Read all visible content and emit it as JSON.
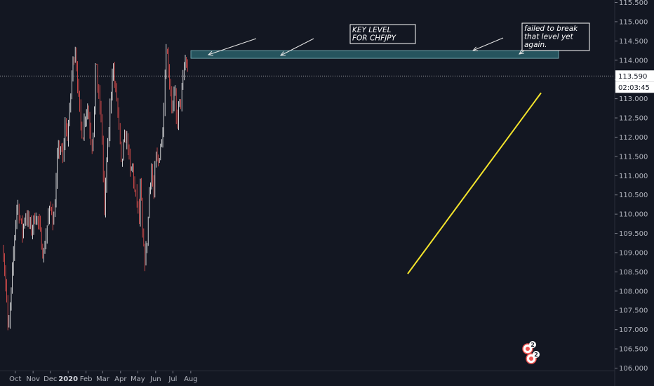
{
  "chart_data": {
    "type": "candlestick",
    "symbol": "CHFJPY",
    "ylim": [
      106.0,
      115.5
    ],
    "y_ticks": [
      "106.000",
      "106.500",
      "107.000",
      "107.500",
      "108.000",
      "108.500",
      "109.000",
      "109.500",
      "110.000",
      "110.500",
      "111.000",
      "111.500",
      "112.000",
      "112.500",
      "113.000",
      "113.500",
      "114.000",
      "114.500",
      "115.000",
      "115.500"
    ],
    "x_ticks": [
      {
        "label": "Oct",
        "bold": false
      },
      {
        "label": "Nov",
        "bold": false
      },
      {
        "label": "Dec",
        "bold": false
      },
      {
        "label": "2020",
        "bold": true
      },
      {
        "label": "Feb",
        "bold": false
      },
      {
        "label": "Mar",
        "bold": false
      },
      {
        "label": "Apr",
        "bold": false
      },
      {
        "label": "May",
        "bold": false
      },
      {
        "label": "Jun",
        "bold": false
      },
      {
        "label": "Jul",
        "bold": false
      },
      {
        "label": "Aug",
        "bold": false
      }
    ],
    "price_path": [
      [
        "2019-09-25",
        109.0
      ],
      [
        "2019-09-28",
        108.4
      ],
      [
        "2019-10-02",
        107.6
      ],
      [
        "2019-10-03",
        106.8
      ],
      [
        "2019-10-08",
        107.8
      ],
      [
        "2019-10-12",
        108.8
      ],
      [
        "2019-10-16",
        109.8
      ],
      [
        "2019-10-19",
        110.3
      ],
      [
        "2019-10-24",
        109.9
      ],
      [
        "2019-10-28",
        109.5
      ],
      [
        "2019-11-02",
        110.0
      ],
      [
        "2019-11-08",
        109.8
      ],
      [
        "2019-11-13",
        109.6
      ],
      [
        "2019-11-20",
        110.0
      ],
      [
        "2019-11-26",
        109.7
      ],
      [
        "2019-12-01",
        109.2
      ],
      [
        "2019-12-04",
        108.9
      ],
      [
        "2019-12-09",
        109.6
      ],
      [
        "2019-12-13",
        110.0
      ],
      [
        "2019-12-18",
        110.2
      ],
      [
        "2019-12-21",
        109.7
      ],
      [
        "2019-12-25",
        110.6
      ],
      [
        "2019-12-28",
        111.5
      ],
      [
        "2020-01-02",
        111.8
      ],
      [
        "2020-01-07",
        111.3
      ],
      [
        "2020-01-10",
        112.4
      ],
      [
        "2020-01-14",
        112.0
      ],
      [
        "2020-01-18",
        112.6
      ],
      [
        "2020-01-22",
        113.6
      ],
      [
        "2020-01-25",
        114.1
      ],
      [
        "2020-01-28",
        114.3
      ],
      [
        "2020-02-02",
        113.2
      ],
      [
        "2020-02-06",
        112.4
      ],
      [
        "2020-02-10",
        112.0
      ],
      [
        "2020-02-14",
        112.6
      ],
      [
        "2020-02-18",
        112.8
      ],
      [
        "2020-02-22",
        112.3
      ],
      [
        "2020-02-26",
        111.8
      ],
      [
        "2020-03-01",
        112.6
      ],
      [
        "2020-03-04",
        114.3
      ],
      [
        "2020-03-07",
        113.2
      ],
      [
        "2020-03-11",
        112.8
      ],
      [
        "2020-03-15",
        111.9
      ],
      [
        "2020-03-17",
        110.8
      ],
      [
        "2020-03-19",
        109.9
      ],
      [
        "2020-03-22",
        111.3
      ],
      [
        "2020-03-26",
        112.0
      ],
      [
        "2020-03-29",
        112.9
      ],
      [
        "2020-04-02",
        113.9
      ],
      [
        "2020-04-06",
        113.3
      ],
      [
        "2020-04-10",
        112.9
      ],
      [
        "2020-04-14",
        112.0
      ],
      [
        "2020-04-17",
        111.2
      ],
      [
        "2020-04-21",
        111.8
      ],
      [
        "2020-04-25",
        112.0
      ],
      [
        "2020-04-29",
        111.8
      ],
      [
        "2020-05-02",
        111.0
      ],
      [
        "2020-05-06",
        111.3
      ],
      [
        "2020-05-10",
        110.6
      ],
      [
        "2020-05-15",
        110.3
      ],
      [
        "2020-05-18",
        109.8
      ],
      [
        "2020-05-21",
        111.0
      ],
      [
        "2020-05-23",
        109.5
      ],
      [
        "2020-05-26",
        109.0
      ],
      [
        "2020-05-29",
        108.8
      ],
      [
        "2020-06-02",
        109.6
      ],
      [
        "2020-06-05",
        110.8
      ],
      [
        "2020-06-09",
        111.2
      ],
      [
        "2020-06-12",
        110.4
      ],
      [
        "2020-06-16",
        111.5
      ],
      [
        "2020-06-20",
        111.3
      ],
      [
        "2020-06-24",
        111.8
      ],
      [
        "2020-06-27",
        111.9
      ],
      [
        "2020-07-01",
        113.2
      ],
      [
        "2020-07-04",
        114.4
      ],
      [
        "2020-07-08",
        113.8
      ],
      [
        "2020-07-11",
        113.3
      ],
      [
        "2020-07-15",
        112.7
      ],
      [
        "2020-07-19",
        113.2
      ],
      [
        "2020-07-22",
        112.3
      ],
      [
        "2020-07-26",
        112.8
      ],
      [
        "2020-07-30",
        113.0
      ],
      [
        "2020-08-02",
        113.4
      ],
      [
        "2020-08-05",
        114.0
      ],
      [
        "2020-08-08",
        113.9
      ],
      [
        "2020-08-11",
        113.59
      ]
    ],
    "key_level": {
      "low": 114.05,
      "high": 114.25
    },
    "trendline": {
      "start": 108.45,
      "end": 113.15
    },
    "last_price": {
      "value": "113.590",
      "countdown": "02:03:45",
      "level": 113.59
    },
    "annotations": [
      {
        "id": "key-level-note",
        "lines": [
          "KEY LEVEL",
          "FOR CHFJPY"
        ]
      },
      {
        "id": "fail-break-note",
        "lines": [
          "failed to break",
          "that level yet",
          "again."
        ]
      }
    ],
    "event_badges": [
      {
        "count": "2"
      },
      {
        "count": "2"
      }
    ],
    "colors": {
      "background": "#131722",
      "up_candle": "#ffffff",
      "down_candle": "#ef5350",
      "key_level_fill": "#2e6a73",
      "trendline": "#f5e52c",
      "text": "#b2b5be",
      "price_label_bg": "#ffffff",
      "badge": "#ef5350"
    }
  }
}
